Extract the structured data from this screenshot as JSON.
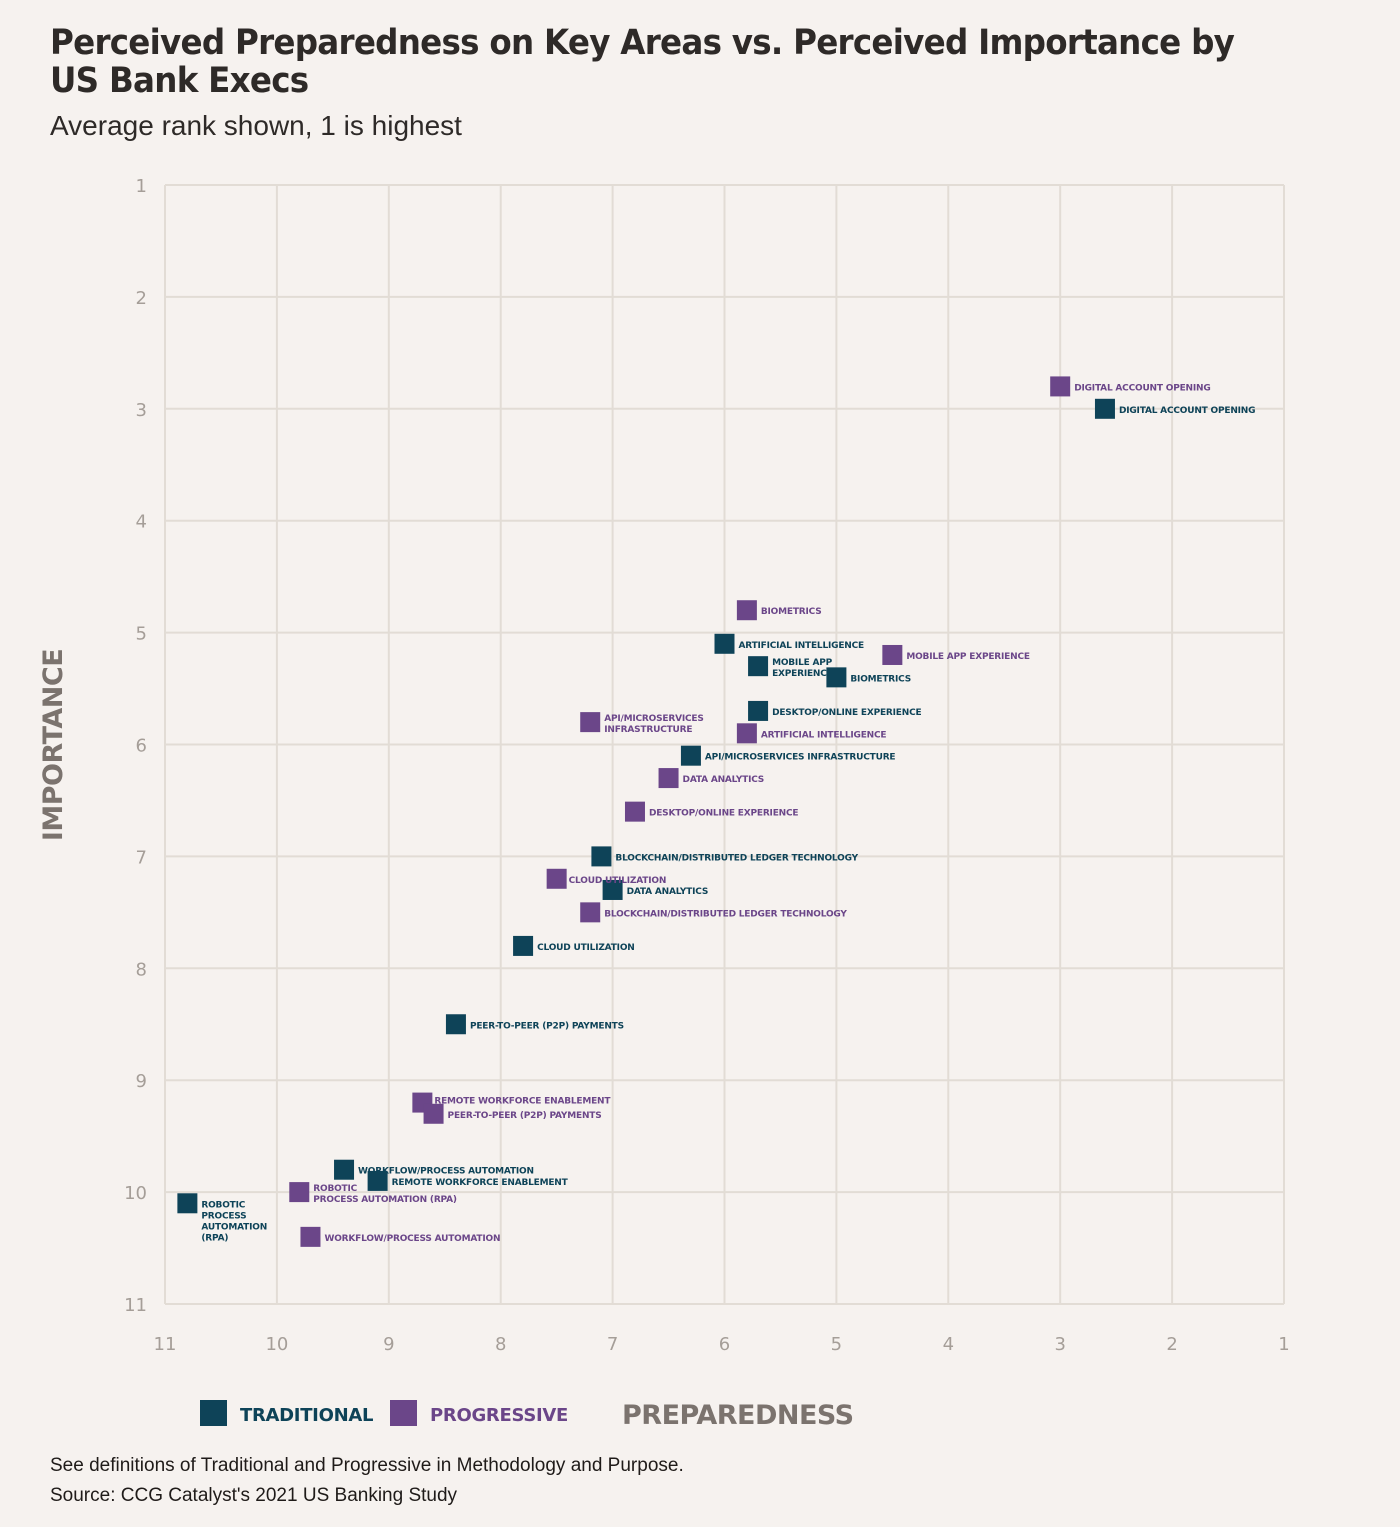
{
  "title": "Perceived Preparedness on Key Areas vs. Perceived Importance by US Bank Execs",
  "subtitle": "Average rank shown, 1 is highest",
  "footnote_1": "See definitions of Traditional and Progressive in Methodology and Purpose.",
  "footnote_2": "Source: CCG Catalyst's 2021 US Banking Study",
  "chart_data": {
    "type": "scatter",
    "xlabel": "PREPAREDNESS",
    "ylabel": "IMPORTANCE",
    "xlim": [
      11,
      1
    ],
    "ylim": [
      1,
      11
    ],
    "x_reversed": true,
    "y_reversed": true,
    "x_ticks": [
      11,
      10,
      9,
      8,
      7,
      6,
      5,
      4,
      3,
      2,
      1
    ],
    "y_ticks": [
      1,
      2,
      3,
      4,
      5,
      6,
      7,
      8,
      9,
      10,
      11
    ],
    "grid": true,
    "legend_position": "bottom-left",
    "series": [
      {
        "name": "TRADITIONAL",
        "color": "#0e4358",
        "points": [
          {
            "label": "DIGITAL ACCOUNT OPENING",
            "x": 2.6,
            "y": 3.0
          },
          {
            "label": "ARTIFICIAL INTELLIGENCE",
            "x": 6.0,
            "y": 5.1
          },
          {
            "label": "MOBILE APP EXPERIENCE",
            "x": 5.7,
            "y": 5.3
          },
          {
            "label": "BIOMETRICS",
            "x": 5.0,
            "y": 5.4
          },
          {
            "label": "DESKTOP/ONLINE EXPERIENCE",
            "x": 5.7,
            "y": 5.7
          },
          {
            "label": "API/MICROSERVICES INFRASTRUCTURE",
            "x": 6.3,
            "y": 6.1
          },
          {
            "label": "BLOCKCHAIN/DISTRIBUTED LEDGER TECHNOLOGY",
            "x": 7.1,
            "y": 7.0
          },
          {
            "label": "DATA ANALYTICS",
            "x": 7.0,
            "y": 7.3
          },
          {
            "label": "CLOUD UTILIZATION",
            "x": 7.8,
            "y": 7.8
          },
          {
            "label": "PEER-TO-PEER (P2P) PAYMENTS",
            "x": 8.4,
            "y": 8.5
          },
          {
            "label": "WORKFLOW/PROCESS AUTOMATION",
            "x": 9.4,
            "y": 9.8
          },
          {
            "label": "REMOTE WORKFORCE ENABLEMENT",
            "x": 9.1,
            "y": 9.9
          },
          {
            "label": "ROBOTIC PROCESS AUTOMATION (RPA)",
            "x": 10.8,
            "y": 10.1
          }
        ]
      },
      {
        "name": "PROGRESSIVE",
        "color": "#6b4689",
        "points": [
          {
            "label": "DIGITAL ACCOUNT OPENING",
            "x": 3.0,
            "y": 2.8
          },
          {
            "label": "BIOMETRICS",
            "x": 5.8,
            "y": 4.8
          },
          {
            "label": "MOBILE APP EXPERIENCE",
            "x": 4.5,
            "y": 5.2
          },
          {
            "label": "API/MICROSERVICES INFRASTRUCTURE",
            "x": 7.2,
            "y": 5.8
          },
          {
            "label": "ARTIFICIAL INTELLIGENCE",
            "x": 5.8,
            "y": 5.9
          },
          {
            "label": "DATA ANALYTICS",
            "x": 6.5,
            "y": 6.3
          },
          {
            "label": "DESKTOP/ONLINE EXPERIENCE",
            "x": 6.8,
            "y": 6.6
          },
          {
            "label": "CLOUD UTILIZATION",
            "x": 7.5,
            "y": 7.2
          },
          {
            "label": "BLOCKCHAIN/DISTRIBUTED LEDGER TECHNOLOGY",
            "x": 7.2,
            "y": 7.5
          },
          {
            "label": "REMOTE WORKFORCE ENABLEMENT",
            "x": 8.7,
            "y": 9.2
          },
          {
            "label": "PEER-TO-PEER (P2P) PAYMENTS",
            "x": 8.6,
            "y": 9.3
          },
          {
            "label": "ROBOTIC PROCESS AUTOMATION (RPA)",
            "x": 9.8,
            "y": 10.0
          },
          {
            "label": "WORKFLOW/PROCESS AUTOMATION",
            "x": 9.7,
            "y": 10.4
          }
        ]
      }
    ]
  }
}
